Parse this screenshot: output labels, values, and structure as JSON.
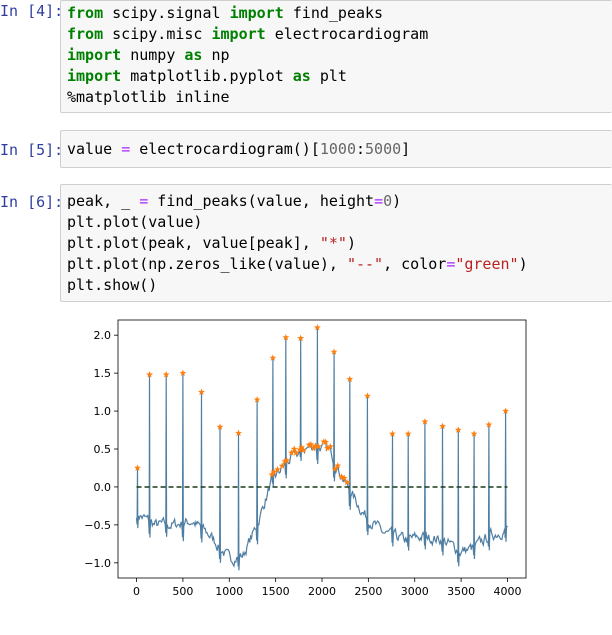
{
  "cells": [
    {
      "prompt": "In [4]:",
      "lines": [
        [
          {
            "t": "from",
            "c": "kw"
          },
          {
            "t": " scipy.signal "
          },
          {
            "t": "import",
            "c": "kw"
          },
          {
            "t": " find_peaks"
          }
        ],
        [
          {
            "t": "from",
            "c": "kw"
          },
          {
            "t": " scipy.misc "
          },
          {
            "t": "import",
            "c": "kw"
          },
          {
            "t": " electrocardiogram"
          }
        ],
        [
          {
            "t": "import",
            "c": "kw"
          },
          {
            "t": " numpy "
          },
          {
            "t": "as",
            "c": "kw"
          },
          {
            "t": " np"
          }
        ],
        [
          {
            "t": "import",
            "c": "kw"
          },
          {
            "t": " matplotlib.pyplot "
          },
          {
            "t": "as",
            "c": "kw"
          },
          {
            "t": " plt"
          }
        ],
        [
          {
            "t": "%matplotlib inline",
            "c": "mag"
          }
        ]
      ]
    },
    {
      "prompt": "In [5]:",
      "lines": [
        [
          {
            "t": "value "
          },
          {
            "t": "=",
            "c": "op"
          },
          {
            "t": " electrocardiogram()["
          },
          {
            "t": "1000",
            "c": "num"
          },
          {
            "t": ":"
          },
          {
            "t": "5000",
            "c": "num"
          },
          {
            "t": "]"
          }
        ]
      ]
    },
    {
      "prompt": "In [6]:",
      "lines": [
        [
          {
            "t": "peak, _ "
          },
          {
            "t": "=",
            "c": "op"
          },
          {
            "t": " find_peaks(value, height"
          },
          {
            "t": "=",
            "c": "op"
          },
          {
            "t": "0",
            "c": "num"
          },
          {
            "t": ")"
          }
        ],
        [
          {
            "t": "plt.plot(value)"
          }
        ],
        [
          {
            "t": "plt.plot(peak, value[peak], "
          },
          {
            "t": "\"*\"",
            "c": "str"
          },
          {
            "t": ")"
          }
        ],
        [
          {
            "t": "plt.plot(np.zeros_like(value), "
          },
          {
            "t": "\"--\"",
            "c": "str"
          },
          {
            "t": ", color"
          },
          {
            "t": "=",
            "c": "op"
          },
          {
            "t": "\"green\"",
            "c": "str"
          },
          {
            "t": ")"
          }
        ],
        [
          {
            "t": "plt.show()"
          }
        ]
      ]
    }
  ],
  "chart_data": {
    "type": "line",
    "title": "",
    "xlabel": "",
    "ylabel": "",
    "xlim": [
      -200,
      4200
    ],
    "ylim": [
      -1.2,
      2.2
    ],
    "xticks": [
      0,
      500,
      1000,
      1500,
      2000,
      2500,
      3000,
      3500,
      4000
    ],
    "yticks": [
      -1.0,
      -0.5,
      0.0,
      0.5,
      1.0,
      1.5,
      2.0
    ],
    "grid": false,
    "colors": {
      "signal": "#4f7ea3",
      "peaks": "#ff7f0e",
      "zero": "green"
    },
    "baseline_trend": {
      "x": [
        0,
        200,
        400,
        600,
        800,
        1000,
        1150,
        1300,
        1450,
        1600,
        1800,
        1950,
        2100,
        2250,
        2450,
        2650,
        2900,
        3100,
        3300,
        3500,
        3650,
        3800,
        4000
      ],
      "y": [
        -0.35,
        -0.5,
        -0.5,
        -0.45,
        -0.65,
        -0.95,
        -0.9,
        -0.5,
        0.05,
        0.3,
        0.5,
        0.55,
        0.45,
        0.05,
        -0.35,
        -0.6,
        -0.7,
        -0.65,
        -0.7,
        -0.85,
        -0.8,
        -0.65,
        -0.55
      ]
    },
    "spike_peaks": {
      "x": [
        10,
        140,
        320,
        500,
        700,
        900,
        1100,
        1300,
        1470,
        1610,
        1770,
        1950,
        2130,
        2300,
        2490,
        2760,
        2930,
        3110,
        3300,
        3470,
        3640,
        3800,
        3980
      ],
      "y": [
        0.25,
        1.48,
        1.48,
        1.5,
        1.25,
        0.79,
        0.71,
        1.15,
        1.7,
        1.97,
        1.96,
        2.1,
        1.78,
        1.42,
        1.2,
        0.7,
        0.7,
        0.86,
        0.8,
        0.75,
        0.7,
        0.82,
        1.0
      ]
    },
    "series": [
      {
        "values": "ECG signal (4000 samples)"
      },
      {
        "values": "detected peaks (*)"
      },
      {
        "values": "zero line (--)"
      }
    ]
  }
}
